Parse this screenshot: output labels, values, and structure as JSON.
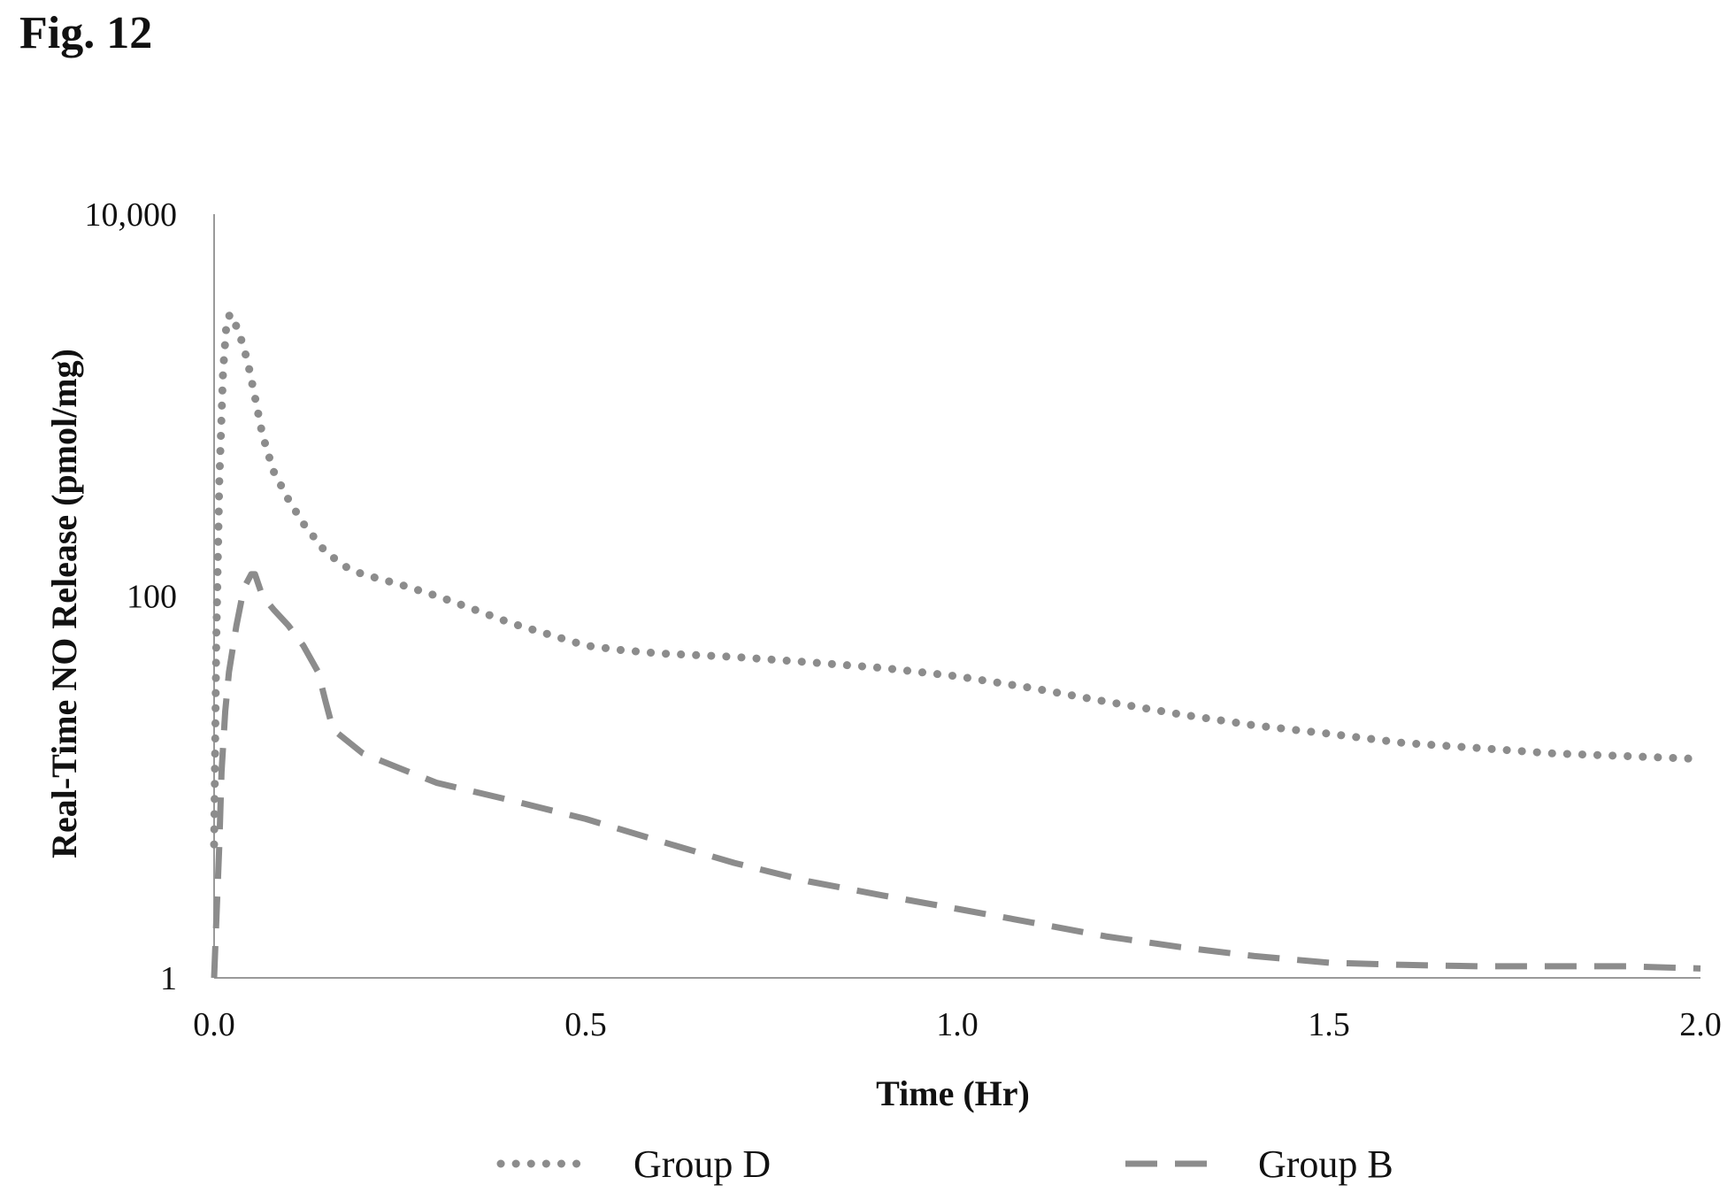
{
  "figure_label": "Fig. 12",
  "chart_data": {
    "type": "line",
    "title": "",
    "xlabel": "Time (Hr)",
    "ylabel": "Real-Time NO Release (pmol/mg)",
    "xlim": [
      0,
      2.0
    ],
    "ylim": [
      1,
      10000
    ],
    "yscale": "log",
    "x_ticks": [
      0,
      0.5,
      1.0,
      1.5,
      2.0
    ],
    "x_tick_labels": [
      "0.0",
      "0.5",
      "1.0",
      "1.5",
      "2.0"
    ],
    "y_ticks": [
      1,
      100,
      10000
    ],
    "y_tick_labels": [
      "1",
      "100",
      "10,000"
    ],
    "grid": false,
    "legend_position": "bottom",
    "series": [
      {
        "name": "Group D",
        "style": "dotted",
        "color": "#8c8c8c",
        "x": [
          0,
          0.003,
          0.007,
          0.012,
          0.017,
          0.022,
          0.028,
          0.035,
          0.045,
          0.055,
          0.065,
          0.08,
          0.1,
          0.12,
          0.15,
          0.18,
          0.2,
          0.25,
          0.3,
          0.35,
          0.4,
          0.45,
          0.5,
          0.55,
          0.6,
          0.7,
          0.8,
          0.9,
          1.0,
          1.1,
          1.2,
          1.3,
          1.4,
          1.5,
          1.6,
          1.7,
          1.8,
          1.9,
          2.0
        ],
        "y": [
          5,
          60,
          400,
          1500,
          2800,
          3000,
          2700,
          2300,
          1700,
          1100,
          700,
          450,
          320,
          240,
          170,
          140,
          130,
          115,
          100,
          85,
          72,
          63,
          55,
          52,
          50,
          48,
          45,
          42,
          38,
          33,
          28,
          24,
          21,
          19,
          17,
          16,
          15,
          14.5,
          14
        ]
      },
      {
        "name": "Group B",
        "style": "dashed",
        "color": "#8c8c8c",
        "x": [
          0,
          0.003,
          0.007,
          0.01,
          0.015,
          0.02,
          0.03,
          0.04,
          0.05,
          0.055,
          0.065,
          0.08,
          0.1,
          0.12,
          0.14,
          0.15,
          0.16,
          0.2,
          0.25,
          0.3,
          0.4,
          0.5,
          0.6,
          0.7,
          0.8,
          0.9,
          1.0,
          1.1,
          1.2,
          1.3,
          1.4,
          1.5,
          1.6,
          1.7,
          1.8,
          1.9,
          2.0
        ],
        "y": [
          1,
          2,
          5,
          12,
          25,
          40,
          70,
          110,
          130,
          130,
          100,
          85,
          70,
          55,
          40,
          28,
          20,
          15,
          12.5,
          10.5,
          8.5,
          6.8,
          5.2,
          4.0,
          3.2,
          2.7,
          2.3,
          1.95,
          1.65,
          1.45,
          1.3,
          1.2,
          1.17,
          1.15,
          1.15,
          1.15,
          1.12
        ]
      }
    ]
  }
}
